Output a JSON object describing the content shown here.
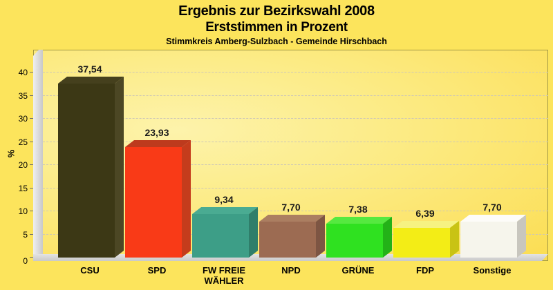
{
  "page": {
    "background": "#fce45c",
    "plot_gradient_inner": "#fdf3ab",
    "plot_gradient_mid": "#fcea80",
    "plot_gradient_outer": "#fbdd52",
    "plot_border": "#a09743",
    "gridline_color": "#cdc7b6",
    "wall_floor_color": "#d6d6d6"
  },
  "header": {
    "title_line1": "Ergebnis zur Bezirkswahl 2008",
    "title_line2": "Erststimmen in Prozent",
    "subtitle": "Stimmkreis Amberg-Sulzbach - Gemeinde Hirschbach"
  },
  "chart_data": {
    "type": "bar",
    "style": "3d-column",
    "title": "Ergebnis zur Bezirkswahl 2008 - Erststimmen in Prozent",
    "subtitle": "Stimmkreis Amberg-Sulzbach - Gemeinde Hirschbach",
    "categories": [
      "CSU",
      "SPD",
      "FW FREIE WÄHLER",
      "NPD",
      "GRÜNE",
      "FDP",
      "Sonstige"
    ],
    "values": [
      37.54,
      23.93,
      9.34,
      7.7,
      7.38,
      6.39,
      7.7
    ],
    "value_labels": [
      "37,54",
      "23,93",
      "9,34",
      "7,70",
      "7,38",
      "6,39",
      "7,70"
    ],
    "xlabel": "",
    "ylabel": "%",
    "ylim": [
      0,
      40
    ],
    "yticks": [
      0,
      5,
      10,
      15,
      20,
      25,
      30,
      35,
      40
    ],
    "grid": "horizontal-dashed",
    "legend": "none",
    "bar_colors": [
      {
        "party": "CSU",
        "front": "#3c3815",
        "top": "#45401d",
        "side": "#4c4724"
      },
      {
        "party": "SPD",
        "front": "#f93a17",
        "top": "#bd3a1d",
        "side": "#c53c1c"
      },
      {
        "party": "FW FREIE WÄHLER",
        "front": "#3d9e87",
        "top": "#4aab92",
        "side": "#2f7e6a"
      },
      {
        "party": "NPD",
        "front": "#9c6b52",
        "top": "#ab7e61",
        "side": "#7d5543"
      },
      {
        "party": "GRÜNE",
        "front": "#2fe120",
        "top": "#55e940",
        "side": "#23b218"
      },
      {
        "party": "FDP",
        "front": "#f3ed16",
        "top": "#f6f282",
        "side": "#c9c314"
      },
      {
        "party": "Sonstige",
        "front": "#f6f5ec",
        "top": "#fdfcf9",
        "side": "#c8c6be"
      }
    ]
  }
}
